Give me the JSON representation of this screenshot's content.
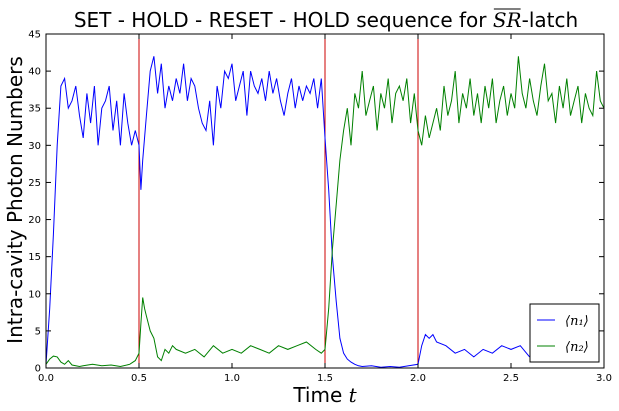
{
  "chart_data": {
    "type": "line",
    "title": "SET - HOLD - RESET - HOLD sequence for SR-latch",
    "title_parts": {
      "before": "SET - HOLD - RESET - HOLD sequence for ",
      "math": "SR",
      "after": "-latch"
    },
    "xlabel": "Time t",
    "xlabel_parts": {
      "text": "Time ",
      "math": "t"
    },
    "ylabel": "Intra-cavity Photon Numbers",
    "xlim": [
      0.0,
      3.0
    ],
    "ylim": [
      0,
      45
    ],
    "xticks": [
      "0.0",
      "0.5",
      "1.0",
      "1.5",
      "2.0",
      "2.5",
      "3.0"
    ],
    "yticks": [
      "0",
      "5",
      "10",
      "15",
      "20",
      "25",
      "30",
      "35",
      "40",
      "45"
    ],
    "grid": false,
    "legend_position": "bottom-right",
    "vlines": [
      0.5,
      1.5,
      2.0
    ],
    "vline_color": "#cc0000",
    "series": [
      {
        "name": "⟨n₁⟩",
        "color": "#0000ff",
        "x": [
          0.0,
          0.02,
          0.04,
          0.06,
          0.08,
          0.1,
          0.12,
          0.14,
          0.16,
          0.18,
          0.2,
          0.22,
          0.24,
          0.26,
          0.28,
          0.3,
          0.32,
          0.34,
          0.36,
          0.38,
          0.4,
          0.42,
          0.44,
          0.46,
          0.48,
          0.5,
          0.51,
          0.52,
          0.54,
          0.56,
          0.58,
          0.6,
          0.62,
          0.64,
          0.66,
          0.68,
          0.7,
          0.72,
          0.74,
          0.76,
          0.78,
          0.8,
          0.82,
          0.84,
          0.86,
          0.88,
          0.9,
          0.92,
          0.94,
          0.96,
          0.98,
          1.0,
          1.02,
          1.04,
          1.06,
          1.08,
          1.1,
          1.12,
          1.14,
          1.16,
          1.18,
          1.2,
          1.22,
          1.24,
          1.26,
          1.28,
          1.3,
          1.32,
          1.34,
          1.36,
          1.38,
          1.4,
          1.42,
          1.44,
          1.46,
          1.48,
          1.5,
          1.52,
          1.54,
          1.56,
          1.58,
          1.6,
          1.62,
          1.64,
          1.66,
          1.68,
          1.7,
          1.75,
          1.8,
          1.85,
          1.9,
          1.95,
          2.0,
          2.02,
          2.04,
          2.06,
          2.08,
          2.1,
          2.15,
          2.2,
          2.25,
          2.3,
          2.35,
          2.4,
          2.45,
          2.5,
          2.55,
          2.6
        ],
        "values": [
          0.5,
          8,
          18,
          30,
          38,
          39,
          35,
          36,
          38,
          34,
          31,
          37,
          33,
          38,
          30,
          35,
          36,
          38,
          32,
          36,
          30,
          37,
          33,
          30,
          32,
          30,
          24,
          28,
          34,
          40,
          42,
          37,
          41,
          35,
          38,
          36,
          39,
          37,
          41,
          36,
          39,
          38,
          35,
          33,
          32,
          36,
          30,
          38,
          35,
          40,
          39,
          41,
          36,
          38,
          40,
          34,
          40,
          38,
          37,
          39,
          36,
          40,
          37,
          39,
          36,
          34,
          37,
          39,
          35,
          38,
          36,
          38,
          37,
          39,
          35,
          39,
          31,
          24,
          15,
          9,
          4,
          2,
          1.2,
          0.8,
          0.5,
          0.3,
          0.2,
          0.3,
          0.1,
          0.2,
          0.1,
          0.3,
          0.5,
          3,
          4.5,
          4,
          4.5,
          3.5,
          3,
          2,
          2.5,
          1.5,
          2.5,
          2,
          3,
          2.5,
          3,
          1.5
        ]
      },
      {
        "name": "⟨n₂⟩",
        "color": "#008000",
        "x": [
          0.0,
          0.02,
          0.04,
          0.06,
          0.08,
          0.1,
          0.12,
          0.14,
          0.16,
          0.18,
          0.2,
          0.25,
          0.3,
          0.35,
          0.4,
          0.45,
          0.48,
          0.5,
          0.51,
          0.52,
          0.53,
          0.54,
          0.56,
          0.58,
          0.6,
          0.62,
          0.64,
          0.66,
          0.68,
          0.7,
          0.75,
          0.8,
          0.85,
          0.9,
          0.95,
          1.0,
          1.05,
          1.1,
          1.15,
          1.2,
          1.25,
          1.3,
          1.35,
          1.4,
          1.45,
          1.48,
          1.5,
          1.52,
          1.54,
          1.56,
          1.58,
          1.6,
          1.62,
          1.64,
          1.66,
          1.68,
          1.7,
          1.72,
          1.74,
          1.76,
          1.78,
          1.8,
          1.82,
          1.84,
          1.86,
          1.88,
          1.9,
          1.92,
          1.94,
          1.96,
          1.98,
          2.0,
          2.02,
          2.04,
          2.06,
          2.08,
          2.1,
          2.12,
          2.14,
          2.16,
          2.18,
          2.2,
          2.22,
          2.24,
          2.26,
          2.28,
          2.3,
          2.32,
          2.34,
          2.36,
          2.38,
          2.4,
          2.42,
          2.44,
          2.46,
          2.48,
          2.5,
          2.52,
          2.54,
          2.56,
          2.58,
          2.6,
          2.62,
          2.64,
          2.66,
          2.68,
          2.7,
          2.72,
          2.74,
          2.76,
          2.78,
          2.8,
          2.82,
          2.84,
          2.86,
          2.88,
          2.9,
          2.92,
          2.94,
          2.96,
          2.98,
          3.0
        ],
        "values": [
          0.5,
          1.2,
          1.6,
          1.5,
          0.8,
          0.5,
          1.0,
          0.4,
          0.3,
          0.2,
          0.3,
          0.5,
          0.3,
          0.4,
          0.2,
          0.5,
          1.0,
          2.0,
          6.0,
          9.5,
          8.0,
          7.0,
          5.0,
          4.0,
          1.5,
          1.0,
          2.5,
          2.0,
          3.0,
          2.5,
          2.0,
          2.5,
          1.5,
          3.0,
          2.0,
          2.5,
          2.0,
          3.0,
          2.5,
          2.0,
          3.0,
          2.5,
          3.0,
          3.5,
          2.5,
          2.0,
          2.5,
          8.0,
          16.0,
          22.0,
          28.0,
          32.0,
          35.0,
          30.0,
          37.0,
          35.0,
          40.0,
          34.0,
          36.0,
          38.0,
          32.0,
          37.0,
          35.0,
          39.0,
          33.0,
          37.0,
          38.0,
          36.0,
          39.0,
          33.0,
          37.0,
          32.0,
          30.0,
          34.0,
          31.0,
          33.0,
          35.0,
          32.0,
          38.0,
          34.0,
          36.0,
          40.0,
          33.0,
          37.0,
          35.0,
          39.0,
          34.0,
          37.0,
          33.0,
          38.0,
          35.0,
          39.0,
          33.0,
          36.0,
          38.0,
          34.0,
          37.0,
          35.0,
          42.0,
          37.0,
          35.0,
          39.0,
          36.0,
          34.0,
          38.0,
          41.0,
          36.0,
          37.0,
          33.0,
          38.0,
          35.0,
          39.0,
          34.0,
          36.0,
          38.0,
          33.0,
          37.0,
          35.0,
          34.0,
          40.0,
          36.0,
          35.0
        ]
      }
    ]
  }
}
